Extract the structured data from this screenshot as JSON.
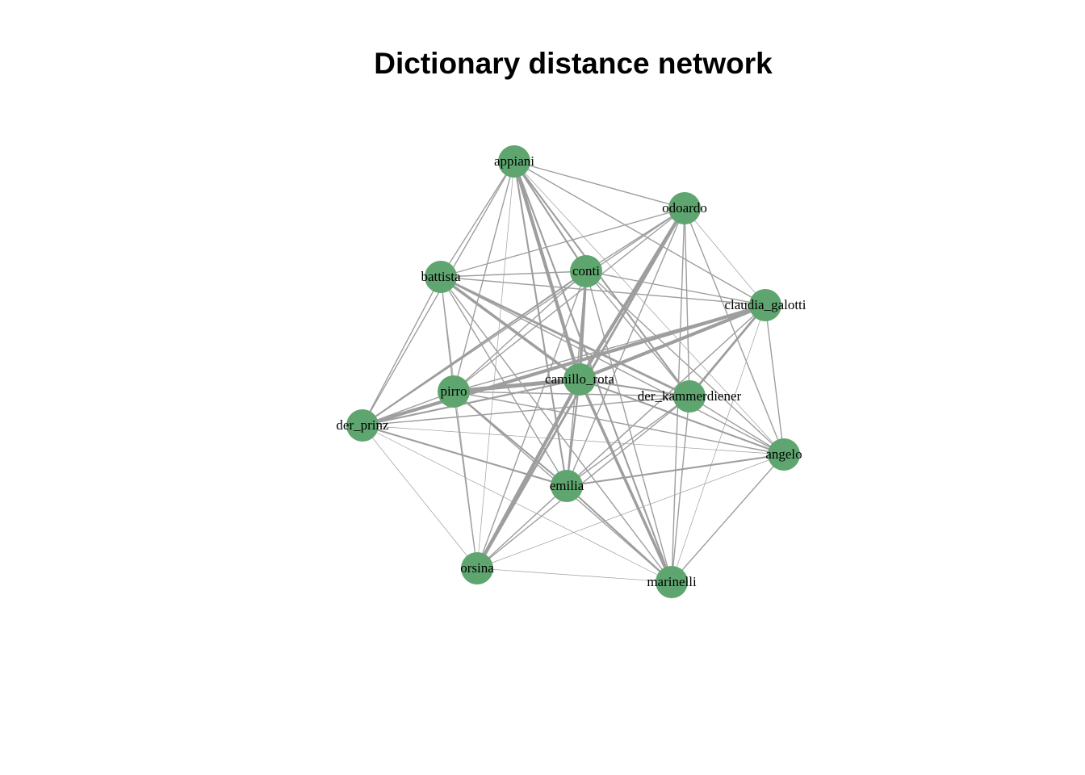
{
  "title": "Dictionary distance network",
  "colors": {
    "node": "#5ea56f",
    "edge": "#9e9e9e",
    "label": "#000000"
  },
  "nodes": [
    {
      "id": "appiani",
      "label": "appiani"
    },
    {
      "id": "odoardo",
      "label": "odoardo"
    },
    {
      "id": "conti",
      "label": "conti"
    },
    {
      "id": "battista",
      "label": "battista"
    },
    {
      "id": "claudia_galotti",
      "label": "claudia_galotti"
    },
    {
      "id": "camillo_rota",
      "label": "camillo_rota"
    },
    {
      "id": "pirro",
      "label": "pirro"
    },
    {
      "id": "der_kammerdiener",
      "label": "der_kammerdiener"
    },
    {
      "id": "der_prinz",
      "label": "der_prinz"
    },
    {
      "id": "angelo",
      "label": "angelo"
    },
    {
      "id": "emilia",
      "label": "emilia"
    },
    {
      "id": "orsina",
      "label": "orsina"
    },
    {
      "id": "marinelli",
      "label": "marinelli"
    }
  ],
  "edges": [
    {
      "source": "appiani",
      "target": "odoardo",
      "weight": 2
    },
    {
      "source": "appiani",
      "target": "conti",
      "weight": 3
    },
    {
      "source": "appiani",
      "target": "battista",
      "weight": 2
    },
    {
      "source": "appiani",
      "target": "claudia_galotti",
      "weight": 2
    },
    {
      "source": "appiani",
      "target": "camillo_rota",
      "weight": 6
    },
    {
      "source": "appiani",
      "target": "pirro",
      "weight": 2
    },
    {
      "source": "appiani",
      "target": "der_kammerdiener",
      "weight": 3
    },
    {
      "source": "appiani",
      "target": "der_prinz",
      "weight": 2
    },
    {
      "source": "appiani",
      "target": "angelo",
      "weight": 1
    },
    {
      "source": "appiani",
      "target": "emilia",
      "weight": 3
    },
    {
      "source": "appiani",
      "target": "orsina",
      "weight": 1
    },
    {
      "source": "appiani",
      "target": "marinelli",
      "weight": 3
    },
    {
      "source": "odoardo",
      "target": "conti",
      "weight": 2
    },
    {
      "source": "odoardo",
      "target": "battista",
      "weight": 2
    },
    {
      "source": "odoardo",
      "target": "claudia_galotti",
      "weight": 1
    },
    {
      "source": "odoardo",
      "target": "camillo_rota",
      "weight": 6
    },
    {
      "source": "odoardo",
      "target": "pirro",
      "weight": 2
    },
    {
      "source": "odoardo",
      "target": "der_kammerdiener",
      "weight": 2
    },
    {
      "source": "odoardo",
      "target": "der_prinz",
      "weight": 2
    },
    {
      "source": "odoardo",
      "target": "angelo",
      "weight": 2
    },
    {
      "source": "odoardo",
      "target": "emilia",
      "weight": 2
    },
    {
      "source": "odoardo",
      "target": "orsina",
      "weight": 4
    },
    {
      "source": "odoardo",
      "target": "marinelli",
      "weight": 2
    },
    {
      "source": "conti",
      "target": "battista",
      "weight": 2
    },
    {
      "source": "conti",
      "target": "claudia_galotti",
      "weight": 2
    },
    {
      "source": "conti",
      "target": "camillo_rota",
      "weight": 5
    },
    {
      "source": "conti",
      "target": "pirro",
      "weight": 2
    },
    {
      "source": "conti",
      "target": "der_kammerdiener",
      "weight": 2
    },
    {
      "source": "conti",
      "target": "der_prinz",
      "weight": 3
    },
    {
      "source": "conti",
      "target": "angelo",
      "weight": 2
    },
    {
      "source": "conti",
      "target": "emilia",
      "weight": 2
    },
    {
      "source": "conti",
      "target": "orsina",
      "weight": 2
    },
    {
      "source": "conti",
      "target": "marinelli",
      "weight": 2
    },
    {
      "source": "battista",
      "target": "claudia_galotti",
      "weight": 2
    },
    {
      "source": "battista",
      "target": "camillo_rota",
      "weight": 5
    },
    {
      "source": "battista",
      "target": "pirro",
      "weight": 2
    },
    {
      "source": "battista",
      "target": "der_kammerdiener",
      "weight": 4
    },
    {
      "source": "battista",
      "target": "der_prinz",
      "weight": 2
    },
    {
      "source": "battista",
      "target": "angelo",
      "weight": 2
    },
    {
      "source": "battista",
      "target": "emilia",
      "weight": 2
    },
    {
      "source": "battista",
      "target": "orsina",
      "weight": 1
    },
    {
      "source": "battista",
      "target": "marinelli",
      "weight": 2
    },
    {
      "source": "claudia_galotti",
      "target": "camillo_rota",
      "weight": 6
    },
    {
      "source": "claudia_galotti",
      "target": "pirro",
      "weight": 2
    },
    {
      "source": "claudia_galotti",
      "target": "der_kammerdiener",
      "weight": 4
    },
    {
      "source": "claudia_galotti",
      "target": "der_prinz",
      "weight": 6
    },
    {
      "source": "claudia_galotti",
      "target": "angelo",
      "weight": 2
    },
    {
      "source": "claudia_galotti",
      "target": "emilia",
      "weight": 2
    },
    {
      "source": "claudia_galotti",
      "target": "orsina",
      "weight": 1
    },
    {
      "source": "claudia_galotti",
      "target": "marinelli",
      "weight": 1
    },
    {
      "source": "camillo_rota",
      "target": "pirro",
      "weight": 7
    },
    {
      "source": "camillo_rota",
      "target": "der_kammerdiener",
      "weight": 3
    },
    {
      "source": "camillo_rota",
      "target": "der_prinz",
      "weight": 3
    },
    {
      "source": "camillo_rota",
      "target": "angelo",
      "weight": 3
    },
    {
      "source": "camillo_rota",
      "target": "emilia",
      "weight": 3
    },
    {
      "source": "camillo_rota",
      "target": "orsina",
      "weight": 6
    },
    {
      "source": "camillo_rota",
      "target": "marinelli",
      "weight": 5
    },
    {
      "source": "pirro",
      "target": "der_kammerdiener",
      "weight": 2
    },
    {
      "source": "pirro",
      "target": "der_prinz",
      "weight": 2
    },
    {
      "source": "pirro",
      "target": "angelo",
      "weight": 2
    },
    {
      "source": "pirro",
      "target": "emilia",
      "weight": 3
    },
    {
      "source": "pirro",
      "target": "orsina",
      "weight": 2
    },
    {
      "source": "pirro",
      "target": "marinelli",
      "weight": 2
    },
    {
      "source": "der_kammerdiener",
      "target": "der_prinz",
      "weight": 2
    },
    {
      "source": "der_kammerdiener",
      "target": "angelo",
      "weight": 2
    },
    {
      "source": "der_kammerdiener",
      "target": "emilia",
      "weight": 2
    },
    {
      "source": "der_kammerdiener",
      "target": "orsina",
      "weight": 2
    },
    {
      "source": "der_kammerdiener",
      "target": "marinelli",
      "weight": 2
    },
    {
      "source": "der_prinz",
      "target": "angelo",
      "weight": 1
    },
    {
      "source": "der_prinz",
      "target": "emilia",
      "weight": 3
    },
    {
      "source": "der_prinz",
      "target": "orsina",
      "weight": 1
    },
    {
      "source": "der_prinz",
      "target": "marinelli",
      "weight": 1
    },
    {
      "source": "angelo",
      "target": "emilia",
      "weight": 3
    },
    {
      "source": "angelo",
      "target": "orsina",
      "weight": 1
    },
    {
      "source": "angelo",
      "target": "marinelli",
      "weight": 2
    },
    {
      "source": "emilia",
      "target": "orsina",
      "weight": 2
    },
    {
      "source": "emilia",
      "target": "marinelli",
      "weight": 3
    },
    {
      "source": "orsina",
      "target": "marinelli",
      "weight": 1
    }
  ]
}
